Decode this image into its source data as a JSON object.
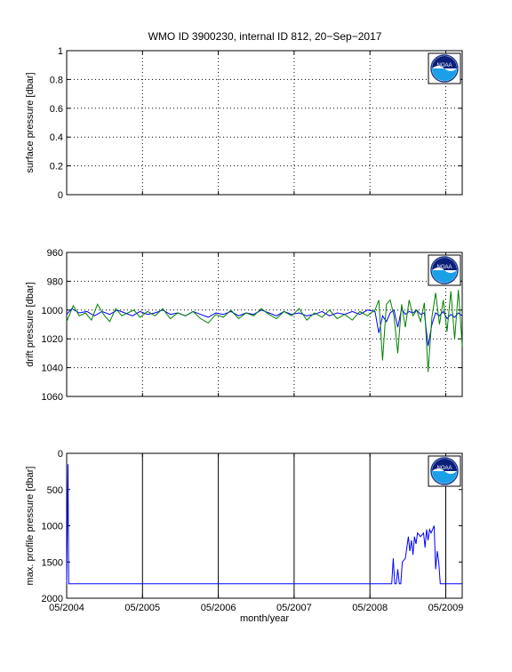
{
  "title": "WMO ID 3900230, internal ID 812, 20−Sep−2017",
  "colors": {
    "blue": "#0000ff",
    "green": "#008000",
    "black": "#000000"
  },
  "logo": {
    "text": "NOAA",
    "icon": "noaa-logo-icon"
  },
  "chart_data": [
    {
      "type": "line",
      "name": "surface-pressure",
      "ylabel": "surface pressure [dbar]",
      "ylim": [
        0,
        1
      ],
      "yticks": [
        0,
        0.2,
        0.4,
        0.6,
        0.8,
        1
      ],
      "ytick_labels": [
        "0",
        "0.2",
        "0.4",
        "0.6",
        "0.8",
        "1"
      ],
      "reverse_y": false,
      "grid": "dotted",
      "series": []
    },
    {
      "type": "line",
      "name": "drift-pressure",
      "ylabel": "drift pressure [dbar]",
      "ylim": [
        960,
        1060
      ],
      "yticks": [
        960,
        980,
        1000,
        1020,
        1040,
        1060
      ],
      "ytick_labels": [
        "960",
        "980",
        "1000",
        "1020",
        "1040",
        "1060"
      ],
      "reverse_y": true,
      "grid": "dotted",
      "series": [
        {
          "color": "blue",
          "x": [
            2004.333,
            2004.4,
            2004.5,
            2004.6,
            2004.7,
            2004.8,
            2004.9,
            2005.0,
            2005.1,
            2005.2,
            2005.3,
            2005.4,
            2005.5,
            2005.6,
            2005.7,
            2005.8,
            2005.9,
            2006.0,
            2006.1,
            2006.2,
            2006.3,
            2006.4,
            2006.5,
            2006.6,
            2006.7,
            2006.8,
            2006.9,
            2007.0,
            2007.1,
            2007.2,
            2007.3,
            2007.4,
            2007.5,
            2007.6,
            2007.7,
            2007.8,
            2007.9,
            2008.0,
            2008.1,
            2008.2,
            2008.3,
            2008.4,
            2008.45,
            2008.5,
            2008.55,
            2008.6,
            2008.65,
            2008.7,
            2008.75,
            2008.8,
            2008.85,
            2008.9,
            2008.95,
            2009.0,
            2009.05,
            2009.1,
            2009.15,
            2009.2,
            2009.25,
            2009.3,
            2009.35,
            2009.4,
            2009.45,
            2009.5,
            2009.55
          ],
          "y": [
            1003,
            999,
            1002,
            1001,
            1004,
            1001,
            1003,
            1000,
            1002,
            1004,
            1001,
            1003,
            1002,
            1000,
            1003,
            1002,
            1004,
            1001,
            1003,
            1005,
            1002,
            1003,
            1001,
            1004,
            1002,
            1003,
            1000,
            1002,
            1004,
            1001,
            1003,
            1002,
            1004,
            1003,
            1001,
            1004,
            1002,
            1003,
            1001,
            1003,
            1000,
            1001,
            1016,
            1004,
            1008,
            1002,
            1000,
            1012,
            999,
            1003,
            1001,
            1002,
            1000,
            1003,
            1002,
            1025,
            1010,
            1002,
            1004,
            1001,
            1006,
            1003,
            1005,
            1002,
            1004
          ]
        },
        {
          "color": "green",
          "x": [
            2004.333,
            2004.42,
            2004.5,
            2004.58,
            2004.66,
            2004.74,
            2004.82,
            2004.9,
            2004.98,
            2005.06,
            2005.14,
            2005.22,
            2005.3,
            2005.4,
            2005.5,
            2005.6,
            2005.7,
            2005.8,
            2005.9,
            2006.0,
            2006.1,
            2006.2,
            2006.3,
            2006.4,
            2006.5,
            2006.6,
            2006.7,
            2006.8,
            2006.9,
            2007.0,
            2007.1,
            2007.2,
            2007.3,
            2007.4,
            2007.5,
            2007.6,
            2007.7,
            2007.8,
            2007.9,
            2008.0,
            2008.1,
            2008.2,
            2008.3,
            2008.4,
            2008.45,
            2008.5,
            2008.55,
            2008.6,
            2008.65,
            2008.7,
            2008.75,
            2008.8,
            2008.85,
            2008.9,
            2008.95,
            2009.0,
            2009.05,
            2009.1,
            2009.15,
            2009.2,
            2009.25,
            2009.3,
            2009.35,
            2009.4,
            2009.45,
            2009.5,
            2009.55
          ],
          "y": [
            1008,
            997,
            1004,
            1002,
            1007,
            996,
            1003,
            1008,
            999,
            1004,
            1002,
            1000,
            1005,
            1001,
            1004,
            999,
            1006,
            1002,
            1004,
            1001,
            1006,
            1009,
            1003,
            1005,
            1000,
            1006,
            1002,
            1004,
            999,
            1003,
            1006,
            1001,
            1004,
            999,
            1007,
            1002,
            1005,
            1000,
            1006,
            1003,
            1007,
            1001,
            1004,
            1000,
            993,
            1035,
            996,
            993,
            1004,
            1030,
            996,
            1012,
            993,
            1004,
            1000,
            1008,
            995,
            1043,
            1005,
            988,
            1010,
            993,
            1015,
            987,
            1020,
            986,
            1025
          ]
        }
      ]
    },
    {
      "type": "line",
      "name": "max-profile-pressure",
      "ylabel": "max. profile pressure [dbar]",
      "xlabel": "month/year",
      "ylim": [
        0,
        2000
      ],
      "yticks": [
        0,
        500,
        1000,
        1500,
        2000
      ],
      "ytick_labels": [
        "0",
        "500",
        "1000",
        "1500",
        "2000"
      ],
      "reverse_y": true,
      "grid": "solid",
      "xticks": [
        2004.333,
        2005.333,
        2006.333,
        2007.333,
        2008.333,
        2009.333
      ],
      "xtick_labels": [
        "05/2004",
        "05/2005",
        "05/2006",
        "05/2007",
        "05/2008",
        "05/2009"
      ],
      "xlim": [
        2004.333,
        2009.55
      ],
      "series": [
        {
          "color": "blue",
          "x": [
            2004.333,
            2004.35,
            2004.36,
            2004.37,
            2004.38,
            2008.62,
            2008.64,
            2008.66,
            2008.68,
            2008.7,
            2008.72,
            2008.74,
            2008.76,
            2008.8,
            2008.82,
            2008.84,
            2008.86,
            2008.88,
            2008.9,
            2008.92,
            2008.94,
            2008.96,
            2009.0,
            2009.04,
            2009.06,
            2009.08,
            2009.1,
            2009.12,
            2009.14,
            2009.16,
            2009.18,
            2009.2,
            2009.22,
            2009.24,
            2009.26,
            2009.28,
            2009.3,
            2009.55
          ],
          "y": [
            1800,
            150,
            1800,
            1800,
            1800,
            1800,
            1450,
            1800,
            1800,
            1600,
            1800,
            1800,
            1500,
            1450,
            1300,
            1150,
            1350,
            1200,
            1400,
            1150,
            1250,
            1100,
            1150,
            1100,
            1300,
            1050,
            1200,
            1050,
            1100,
            1050,
            1000,
            1600,
            1350,
            1500,
            1800,
            1800,
            1800,
            1800
          ]
        }
      ]
    }
  ]
}
